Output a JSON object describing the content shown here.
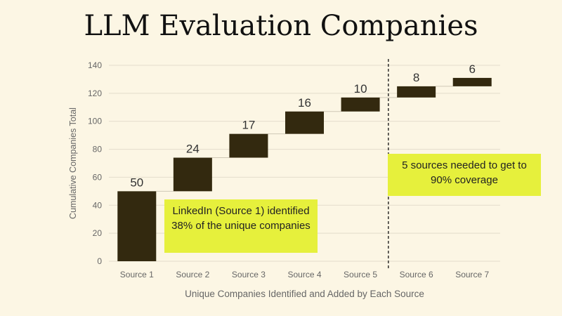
{
  "title": "LLM Evaluation Companies",
  "chart_data": {
    "type": "bar",
    "subtype": "waterfall",
    "categories": [
      "Source 1",
      "Source 2",
      "Source 3",
      "Source 4",
      "Source 5",
      "Source 6",
      "Source 7"
    ],
    "values": [
      50,
      24,
      17,
      16,
      10,
      8,
      6
    ],
    "cumulative": [
      50,
      74,
      91,
      107,
      117,
      125,
      131
    ],
    "xlabel": "Unique Companies Identified and Added by Each Source",
    "ylabel": "Cumulative Companies Total",
    "ylim": [
      0,
      140
    ],
    "yticks": [
      0,
      20,
      40,
      60,
      80,
      100,
      120,
      140
    ],
    "grid": true,
    "divider_after_category": "Source 5",
    "annotations": [
      "LinkedIn (Source 1) identified 38% of the unique companies",
      "5 sources needed to get to 90% coverage"
    ]
  },
  "colors": {
    "bar": "#33290f",
    "grid": "#e3dccb",
    "annotation_bg": "#e6f03c",
    "background": "#fcf6e4"
  }
}
